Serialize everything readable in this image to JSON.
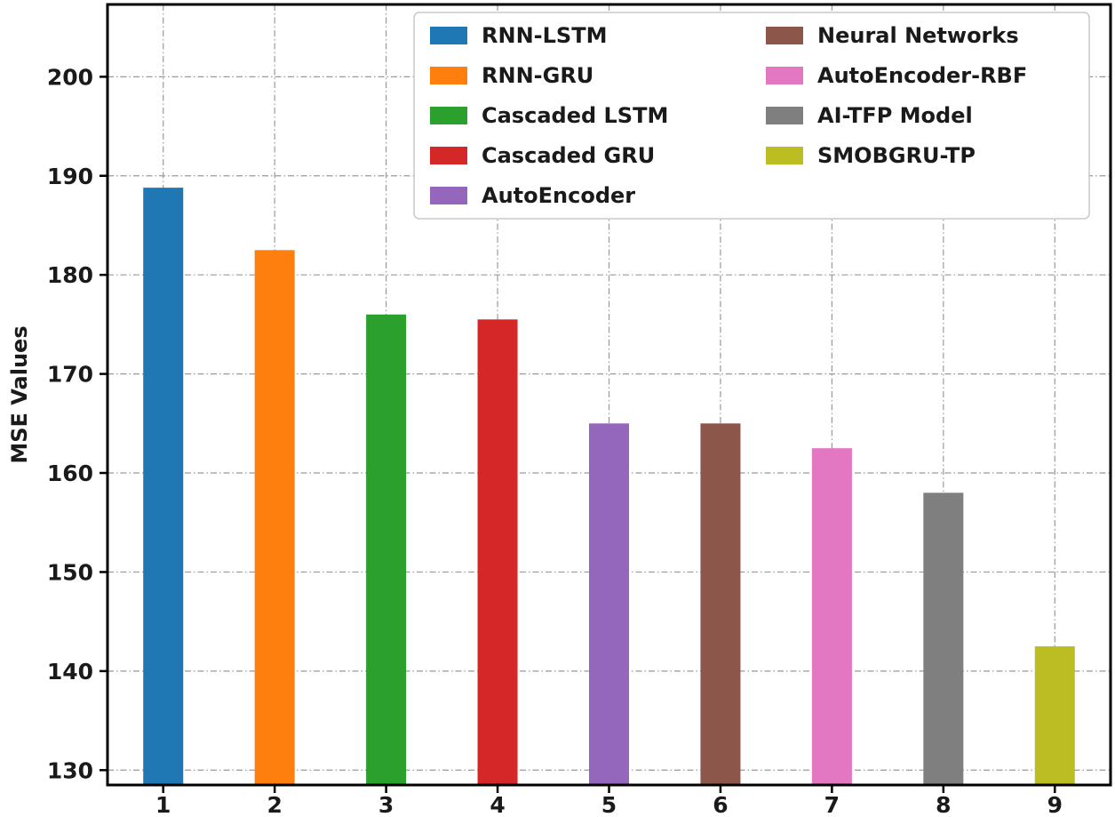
{
  "chart_data": {
    "type": "bar",
    "title": "",
    "xlabel": "",
    "ylabel": "MSE Values",
    "categories": [
      "1",
      "2",
      "3",
      "4",
      "5",
      "6",
      "7",
      "8",
      "9"
    ],
    "values": [
      188.8,
      182.5,
      176.0,
      175.5,
      165.0,
      165.0,
      162.5,
      158.0,
      142.5
    ],
    "bar_colors": [
      "#1f77b4",
      "#ff7f0e",
      "#2ca02c",
      "#d62728",
      "#9467bd",
      "#8c564b",
      "#e377c2",
      "#7f7f7f",
      "#bcbd22"
    ],
    "legend": [
      {
        "label": "RNN-LSTM",
        "color": "#1f77b4"
      },
      {
        "label": "RNN-GRU",
        "color": "#ff7f0e"
      },
      {
        "label": "Cascaded LSTM",
        "color": "#2ca02c"
      },
      {
        "label": "Cascaded GRU",
        "color": "#d62728"
      },
      {
        "label": "AutoEncoder",
        "color": "#9467bd"
      },
      {
        "label": "Neural Networks",
        "color": "#8c564b"
      },
      {
        "label": "AutoEncoder-RBF",
        "color": "#e377c2"
      },
      {
        "label": "AI-TFP Model",
        "color": "#7f7f7f"
      },
      {
        "label": "SMOBGRU-TP",
        "color": "#bcbd22"
      }
    ],
    "legend_position": "upper center, two columns",
    "yticks": [
      130,
      140,
      150,
      160,
      170,
      180,
      190,
      200
    ],
    "ylim": [
      128.5,
      207.3
    ],
    "grid": true,
    "grid_style": "dash-dot",
    "frame_color": "#000000",
    "gridline_color": "#9a9a9a"
  }
}
